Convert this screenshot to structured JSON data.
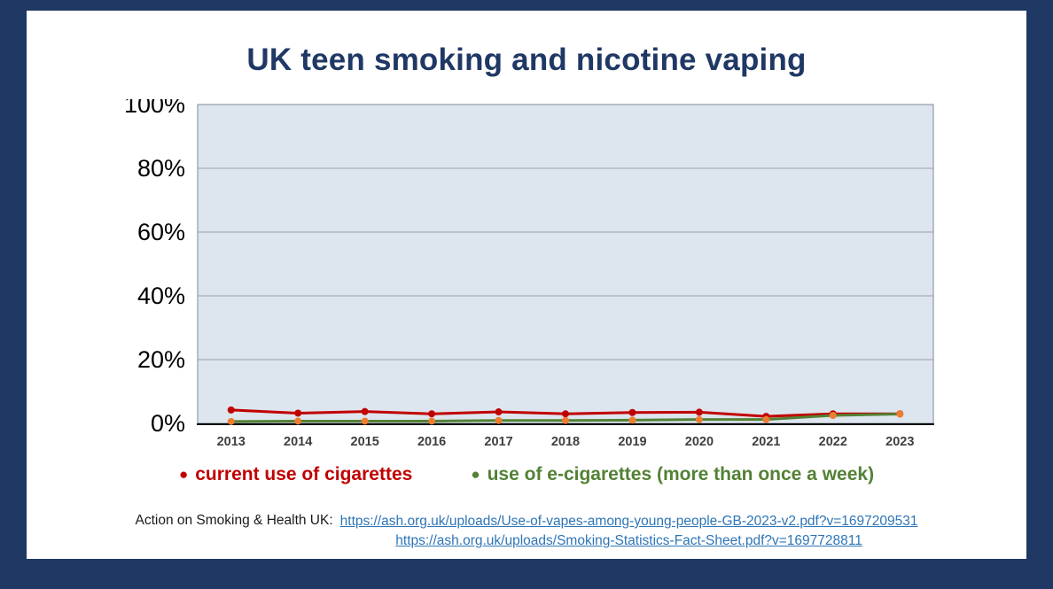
{
  "title": "UK teen smoking and nicotine vaping",
  "legend": [
    {
      "label": "current use of cigarettes",
      "color": "#c00000"
    },
    {
      "label": "use of e-cigarettes (more than once a week)",
      "color": "#538135"
    }
  ],
  "footer": {
    "source_label": "Action on Smoking & Health UK:",
    "links": [
      "https://ash.org.uk/uploads/Use-of-vapes-among-young-people-GB-2023-v2.pdf?v=1697209531",
      "https://ash.org.uk/uploads/Smoking-Statistics-Fact-Sheet.pdf?v=1697728811"
    ]
  },
  "colors": {
    "frame": "#1f3864",
    "slide_bg": "#ffffff",
    "title": "#1f3864",
    "link": "#2e75b6"
  },
  "chart_data": {
    "type": "line",
    "title": "UK teen smoking and nicotine vaping",
    "categories": [
      "2013",
      "2014",
      "2015",
      "2016",
      "2017",
      "2018",
      "2019",
      "2020",
      "2021",
      "2022",
      "2023"
    ],
    "series": [
      {
        "name": "current use of cigarettes",
        "color": "#c00000",
        "marker_color": "#c00000",
        "values": [
          4.2,
          3.2,
          3.7,
          3.0,
          3.6,
          3.0,
          3.4,
          3.5,
          2.2,
          3.0,
          3.0
        ]
      },
      {
        "name": "use of e-cigarettes (more than once a week)",
        "color": "#538135",
        "marker_color": "#ed7d31",
        "values": [
          0.6,
          0.7,
          0.7,
          0.7,
          0.9,
          0.9,
          1.0,
          1.2,
          1.2,
          2.5,
          2.9
        ]
      }
    ],
    "ylim": [
      0,
      100
    ],
    "ytick_step": 20,
    "ytick_suffix": "%",
    "grid": true,
    "legend_position": "bottom",
    "plot_bg": "#dde5ee",
    "plot_border": "#808a93",
    "grid_color": "#9aa0a6",
    "axis_color": "#000000",
    "xtick_color": "#3f3f3f",
    "ytick_color": "#000000"
  }
}
